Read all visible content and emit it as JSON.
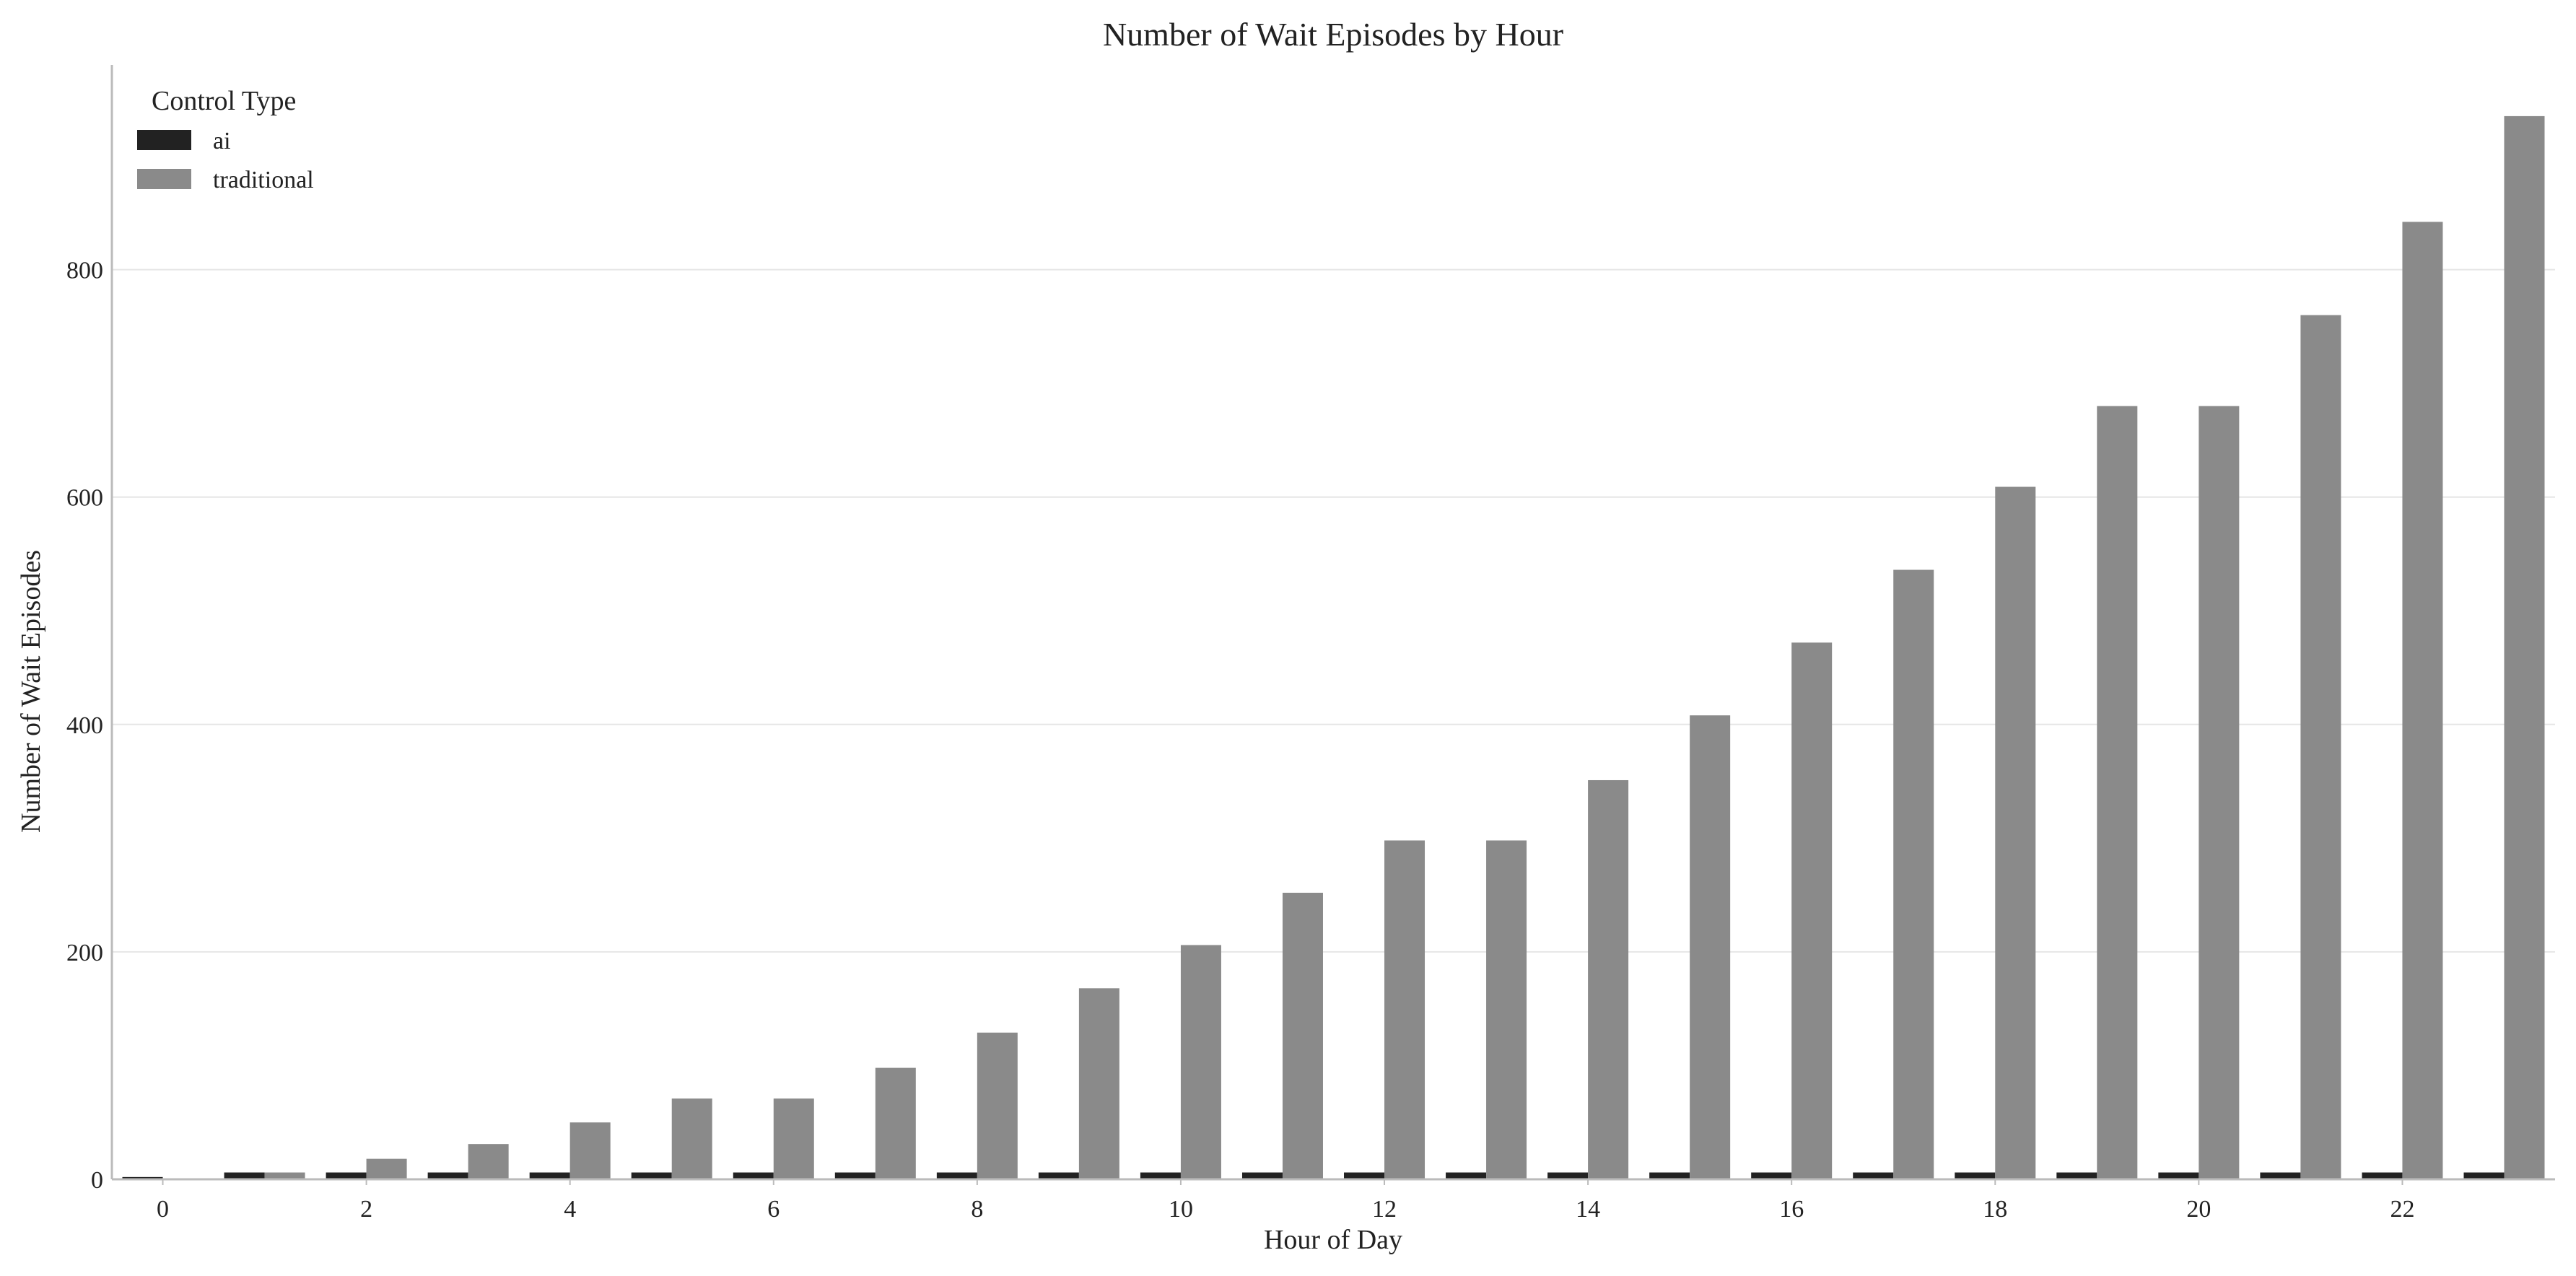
{
  "chart_data": {
    "type": "bar",
    "title": "Number of Wait Episodes by Hour",
    "xlabel": "Hour of Day",
    "ylabel": "Number of Wait Episodes",
    "categories": [
      0,
      1,
      2,
      3,
      4,
      5,
      6,
      7,
      8,
      9,
      10,
      11,
      12,
      13,
      14,
      15,
      16,
      17,
      18,
      19,
      20,
      21,
      22,
      23
    ],
    "x_tick_labels": [
      "0",
      "2",
      "4",
      "6",
      "8",
      "10",
      "12",
      "14",
      "16",
      "18",
      "20",
      "22"
    ],
    "y_ticks": [
      0,
      200,
      400,
      600,
      800
    ],
    "ylim": [
      0,
      980
    ],
    "grid": "y",
    "legend": {
      "title": "Control Type",
      "placement": "top-left"
    },
    "series": [
      {
        "name": "ai",
        "color": "#222222",
        "values": [
          2,
          6,
          6,
          6,
          6,
          6,
          6,
          6,
          6,
          6,
          6,
          6,
          6,
          6,
          6,
          6,
          6,
          6,
          6,
          6,
          6,
          6,
          6,
          6
        ]
      },
      {
        "name": "traditional",
        "color": "#8a8a8a",
        "values": [
          0,
          6,
          18,
          31,
          50,
          71,
          71,
          98,
          129,
          168,
          206,
          252,
          298,
          298,
          351,
          408,
          472,
          536,
          609,
          680,
          680,
          760,
          842,
          935
        ]
      }
    ]
  }
}
